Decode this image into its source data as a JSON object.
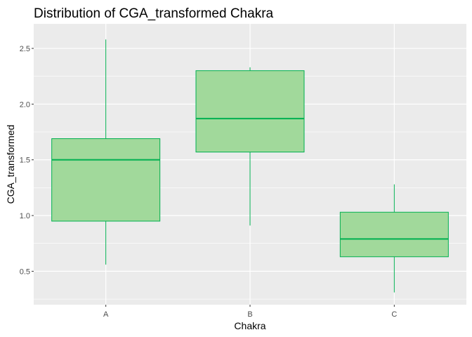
{
  "chart_data": {
    "type": "boxplot",
    "title": "Distribution of CGA_transformed Chakra",
    "xlabel": "Chakra",
    "ylabel": "CGA_transformed",
    "categories": [
      "A",
      "B",
      "C"
    ],
    "boxes": [
      {
        "category": "A",
        "whisker_low": 0.56,
        "q1": 0.95,
        "median": 1.5,
        "q3": 1.69,
        "whisker_high": 2.58
      },
      {
        "category": "B",
        "whisker_low": 0.91,
        "q1": 1.57,
        "median": 1.87,
        "q3": 2.3,
        "whisker_high": 2.33
      },
      {
        "category": "C",
        "whisker_low": 0.31,
        "q1": 0.63,
        "median": 0.79,
        "q3": 1.03,
        "whisker_high": 1.28
      }
    ],
    "ylim": [
      0.2,
      2.72
    ],
    "yticks": [
      0.5,
      1.0,
      1.5,
      2.0,
      2.5
    ],
    "ytick_labels": [
      "0.5",
      "1.0",
      "1.5",
      "2.0",
      "2.5"
    ],
    "grid": true,
    "colors": {
      "panel_background": "#ebebeb",
      "grid_major": "#ffffff",
      "box_fill": "#a1d99b",
      "box_stroke": "#00b050"
    }
  }
}
